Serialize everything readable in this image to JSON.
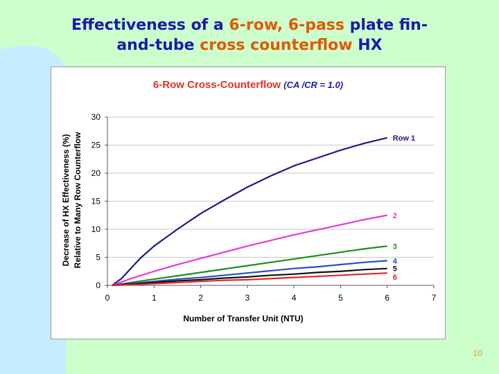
{
  "slide": {
    "title_parts": [
      {
        "text": "Effectiveness of a ",
        "highlight": false
      },
      {
        "text": "6-row, 6-pass",
        "highlight": true
      },
      {
        "text": " plate fin-",
        "highlight": false
      },
      {
        "text": "and-tube ",
        "highlight": false
      },
      {
        "text": "cross counterflow",
        "highlight": true
      },
      {
        "text": " HX",
        "highlight": false
      }
    ],
    "page_number": "10"
  },
  "colors": {
    "background": "#ccffcc",
    "swoosh": "#c6ecff",
    "title": "#1a1aa8",
    "title_highlight": "#e05a00",
    "chart_title": "#e0302a",
    "chart_title_params": "#1a1aa8",
    "page_number": "#e6a020"
  },
  "chart_data": {
    "type": "line",
    "title": "6-Row Cross-Counterflow",
    "title_params": "(CA /CR = 1.0)",
    "xlabel": "Number of Transfer Unit (NTU)",
    "ylabel_lines": [
      "Decrease of HX Effectiveness (%)",
      "Relative to Many Row Counterflow"
    ],
    "xlim": [
      0,
      7
    ],
    "ylim": [
      0,
      30
    ],
    "xticks": [
      0,
      1,
      2,
      3,
      4,
      5,
      6,
      7
    ],
    "yticks": [
      0,
      5,
      10,
      15,
      20,
      25,
      30
    ],
    "grid": "horizontal",
    "legend": "inline-right",
    "series": [
      {
        "name": "Row 1",
        "color": "#1a1a8c",
        "x": [
          0.1,
          0.3,
          0.5,
          0.7,
          1.0,
          1.5,
          2.0,
          2.5,
          3.0,
          3.5,
          4.0,
          4.5,
          5.0,
          5.5,
          6.0
        ],
        "y": [
          0.0,
          1.2,
          3.0,
          4.8,
          7.0,
          10.0,
          12.8,
          15.2,
          17.5,
          19.5,
          21.3,
          22.7,
          24.1,
          25.3,
          26.3
        ]
      },
      {
        "name": "2",
        "color": "#e637d8",
        "x": [
          0.1,
          0.5,
          1.0,
          1.5,
          2.0,
          2.5,
          3.0,
          3.5,
          4.0,
          4.5,
          5.0,
          5.5,
          6.0
        ],
        "y": [
          0.0,
          1.2,
          2.5,
          3.7,
          4.8,
          5.9,
          7.0,
          8.0,
          9.0,
          9.9,
          10.8,
          11.7,
          12.5
        ]
      },
      {
        "name": "3",
        "color": "#1e8c1e",
        "x": [
          0.1,
          0.5,
          1.0,
          1.5,
          2.0,
          2.5,
          3.0,
          3.5,
          4.0,
          4.5,
          5.0,
          5.5,
          6.0
        ],
        "y": [
          0.0,
          0.5,
          1.1,
          1.7,
          2.3,
          2.9,
          3.5,
          4.1,
          4.7,
          5.3,
          5.9,
          6.5,
          7.0
        ]
      },
      {
        "name": "4",
        "color": "#1f4fd0",
        "x": [
          0.1,
          0.5,
          1.0,
          1.5,
          2.0,
          2.5,
          3.0,
          3.5,
          4.0,
          4.5,
          5.0,
          5.5,
          6.0
        ],
        "y": [
          0.0,
          0.3,
          0.7,
          1.1,
          1.4,
          1.8,
          2.2,
          2.6,
          3.0,
          3.3,
          3.7,
          4.1,
          4.4
        ]
      },
      {
        "name": "5",
        "color": "#111111",
        "x": [
          0.1,
          0.5,
          1.0,
          1.5,
          2.0,
          2.5,
          3.0,
          3.5,
          4.0,
          4.5,
          5.0,
          5.5,
          6.0
        ],
        "y": [
          0.0,
          0.2,
          0.5,
          0.8,
          1.0,
          1.3,
          1.5,
          1.8,
          2.0,
          2.3,
          2.5,
          2.8,
          3.0
        ]
      },
      {
        "name": "6",
        "color": "#e0262a",
        "x": [
          0.1,
          0.5,
          1.0,
          1.5,
          2.0,
          2.5,
          3.0,
          3.5,
          4.0,
          4.5,
          5.0,
          5.5,
          6.0
        ],
        "y": [
          0.0,
          0.1,
          0.3,
          0.5,
          0.7,
          0.9,
          1.0,
          1.2,
          1.4,
          1.6,
          1.8,
          2.0,
          2.2
        ]
      }
    ]
  }
}
